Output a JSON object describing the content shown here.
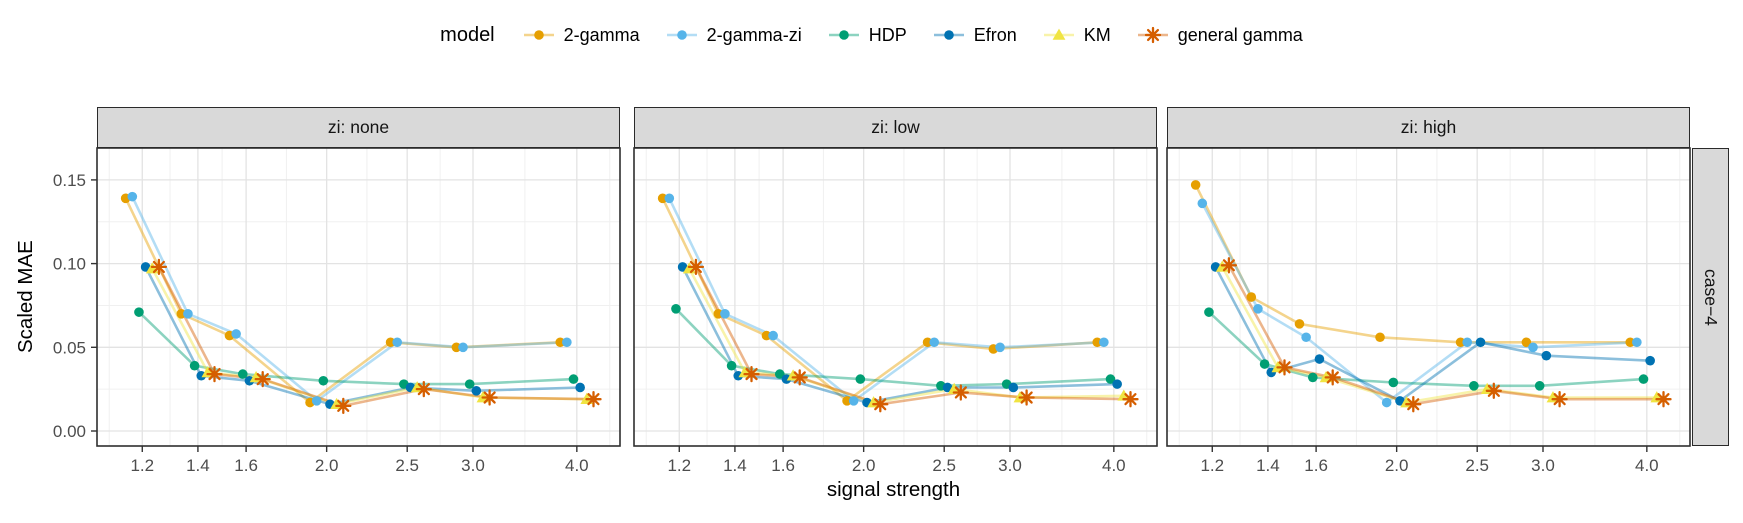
{
  "legend": {
    "title": "model"
  },
  "axes": {
    "y_tick_labels": [
      "0.00",
      "0.05",
      "0.10",
      "0.15"
    ],
    "y_ticks": [
      0.0,
      0.05,
      0.1,
      0.15
    ],
    "x_tick_labels": [
      "1.2",
      "1.4",
      "1.6",
      "2.0",
      "2.5",
      "3.0",
      "4.0"
    ]
  },
  "chart_data": {
    "type": "line",
    "x_scale": "log10",
    "x": [
      1.2,
      1.4,
      1.6,
      2.0,
      2.5,
      3.0,
      4.0
    ],
    "xlabel": "signal strength",
    "ylabel": "Scaled MAE",
    "xlim": [
      1.058,
      4.51
    ],
    "ylim": [
      -0.009,
      0.169
    ],
    "grid": true,
    "legend_position": "top",
    "facet_row_label": "case−4",
    "series_meta": [
      {
        "name": "2-gamma",
        "color": "#E69F00",
        "marker": "circle",
        "dodge": -0.02
      },
      {
        "name": "2-gamma-zi",
        "color": "#56B4E9",
        "marker": "circle",
        "dodge": -0.012
      },
      {
        "name": "HDP",
        "color": "#009E73",
        "marker": "circle",
        "dodge": -0.004
      },
      {
        "name": "Efron",
        "color": "#0072B2",
        "marker": "circle",
        "dodge": 0.004
      },
      {
        "name": "KM",
        "color": "#F0E442",
        "marker": "triangle",
        "dodge": 0.012
      },
      {
        "name": "general gamma",
        "color": "#D55E00",
        "marker": "asterisk",
        "dodge": 0.02
      }
    ],
    "facets": [
      {
        "label": "zi: none",
        "series": [
          [
            0.139,
            0.07,
            0.057,
            0.017,
            0.053,
            0.05,
            0.053
          ],
          [
            0.14,
            0.07,
            0.058,
            0.018,
            0.053,
            0.05,
            0.053
          ],
          [
            0.071,
            0.039,
            0.034,
            0.03,
            0.028,
            0.028,
            0.031
          ],
          [
            0.098,
            0.033,
            0.03,
            0.016,
            0.026,
            0.024,
            0.026
          ],
          [
            0.097,
            0.035,
            0.032,
            0.016,
            0.026,
            0.02,
            0.019
          ],
          [
            0.098,
            0.034,
            0.031,
            0.015,
            0.025,
            0.02,
            0.019
          ]
        ]
      },
      {
        "label": "zi: low",
        "series": [
          [
            0.139,
            0.07,
            0.057,
            0.018,
            0.053,
            0.049,
            0.053
          ],
          [
            0.139,
            0.07,
            0.057,
            0.018,
            0.053,
            0.05,
            0.053
          ],
          [
            0.073,
            0.039,
            0.034,
            0.031,
            0.027,
            0.028,
            0.031
          ],
          [
            0.098,
            0.033,
            0.031,
            0.017,
            0.026,
            0.026,
            0.028
          ],
          [
            0.097,
            0.035,
            0.033,
            0.017,
            0.025,
            0.02,
            0.021
          ],
          [
            0.098,
            0.034,
            0.032,
            0.016,
            0.023,
            0.02,
            0.019
          ]
        ]
      },
      {
        "label": "zi: high",
        "series": [
          [
            0.147,
            0.08,
            0.064,
            0.056,
            0.053,
            0.053,
            0.053
          ],
          [
            0.136,
            0.073,
            0.056,
            0.017,
            0.053,
            0.05,
            0.053
          ],
          [
            0.071,
            0.04,
            0.032,
            0.029,
            0.027,
            0.027,
            0.031
          ],
          [
            0.098,
            0.035,
            0.043,
            0.018,
            0.053,
            0.045,
            0.042
          ],
          [
            0.098,
            0.038,
            0.032,
            0.017,
            0.025,
            0.02,
            0.02
          ],
          [
            0.099,
            0.038,
            0.032,
            0.016,
            0.024,
            0.019,
            0.019
          ]
        ]
      }
    ]
  }
}
